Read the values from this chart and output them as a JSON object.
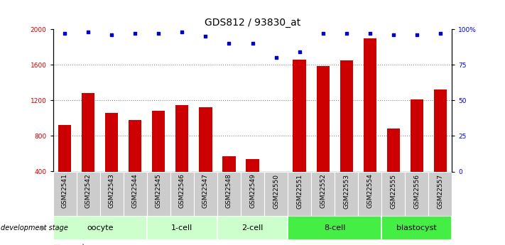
{
  "title": "GDS812 / 93830_at",
  "samples": [
    "GSM22541",
    "GSM22542",
    "GSM22543",
    "GSM22544",
    "GSM22545",
    "GSM22546",
    "GSM22547",
    "GSM22548",
    "GSM22549",
    "GSM22550",
    "GSM22551",
    "GSM22552",
    "GSM22553",
    "GSM22554",
    "GSM22555",
    "GSM22556",
    "GSM22557"
  ],
  "counts": [
    920,
    1280,
    1060,
    980,
    1080,
    1150,
    1120,
    570,
    540,
    380,
    1660,
    1590,
    1650,
    1900,
    880,
    1210,
    1320
  ],
  "percentiles": [
    97,
    98,
    96,
    97,
    97,
    98,
    95,
    90,
    90,
    80,
    84,
    97,
    97,
    97,
    96,
    96,
    97
  ],
  "bar_color": "#cc0000",
  "dot_color": "#0000cc",
  "ylim_left": [
    400,
    2000
  ],
  "ylim_right": [
    0,
    100
  ],
  "yticks_left": [
    400,
    800,
    1200,
    1600,
    2000
  ],
  "yticks_right": [
    0,
    25,
    50,
    75,
    100
  ],
  "grid_lines": [
    800,
    1200,
    1600
  ],
  "grid_color": "#888888",
  "stages": [
    {
      "label": "oocyte",
      "start": 0,
      "end": 3,
      "color": "#ccffcc"
    },
    {
      "label": "1-cell",
      "start": 4,
      "end": 6,
      "color": "#ccffcc"
    },
    {
      "label": "2-cell",
      "start": 7,
      "end": 9,
      "color": "#ccffcc"
    },
    {
      "label": "8-cell",
      "start": 10,
      "end": 13,
      "color": "#44ee44"
    },
    {
      "label": "blastocyst",
      "start": 14,
      "end": 16,
      "color": "#44ee44"
    }
  ],
  "bar_color_red": "#cc0000",
  "dot_color_blue": "#0000cc",
  "xlabel_stage": "development stage",
  "tick_bg_color": "#cccccc",
  "title_fontsize": 10,
  "tick_fontsize": 6.5,
  "stage_fontsize": 8,
  "legend_fontsize": 7
}
